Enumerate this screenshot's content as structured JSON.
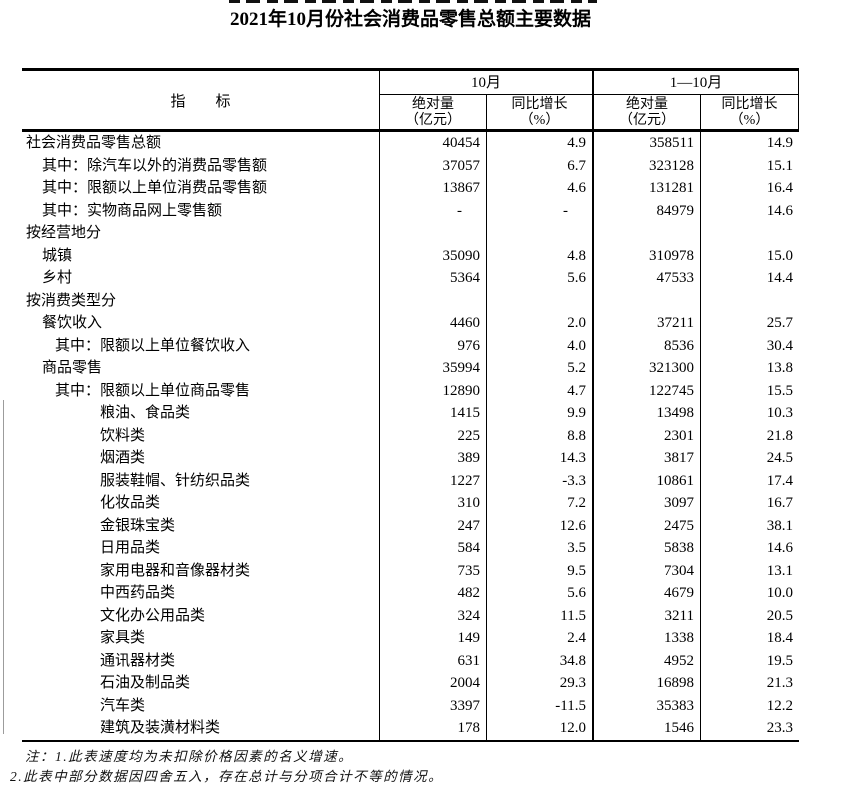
{
  "title": "2021年10月份社会消费品零售总额主要数据",
  "table": {
    "stub_header": "指　　标",
    "col_groups": [
      {
        "label": "10月"
      },
      {
        "label": "1—10月"
      }
    ],
    "sub_headers": [
      {
        "l1": "绝对量",
        "l2": "（亿元）"
      },
      {
        "l1": "同比增长",
        "l2": "（%）"
      },
      {
        "l1": "绝对量",
        "l2": "（亿元）"
      },
      {
        "l1": "同比增长",
        "l2": "（%）"
      }
    ],
    "rows": [
      {
        "label": "社会消费品零售总额",
        "indent": 0,
        "values": [
          "40454",
          "4.9",
          "358511",
          "14.9"
        ]
      },
      {
        "label": "其中：除汽车以外的消费品零售额",
        "indent": 1,
        "values": [
          "37057",
          "6.7",
          "323128",
          "15.1"
        ]
      },
      {
        "label": "其中：限额以上单位消费品零售额",
        "indent": 1,
        "values": [
          "13867",
          "4.6",
          "131281",
          "16.4"
        ]
      },
      {
        "label": "其中：实物商品网上零售额",
        "indent": 1,
        "values": [
          "-",
          "-",
          "84979",
          "14.6"
        ]
      },
      {
        "label": "按经营地分",
        "indent": 0,
        "values": [
          "",
          "",
          "",
          ""
        ]
      },
      {
        "label": "城镇",
        "indent": 1,
        "values": [
          "35090",
          "4.8",
          "310978",
          "15.0"
        ]
      },
      {
        "label": "乡村",
        "indent": 1,
        "values": [
          "5364",
          "5.6",
          "47533",
          "14.4"
        ]
      },
      {
        "label": "按消费类型分",
        "indent": 0,
        "values": [
          "",
          "",
          "",
          ""
        ]
      },
      {
        "label": "餐饮收入",
        "indent": 1,
        "values": [
          "4460",
          "2.0",
          "37211",
          "25.7"
        ]
      },
      {
        "label": "其中：限额以上单位餐饮收入",
        "indent": 2,
        "values": [
          "976",
          "4.0",
          "8536",
          "30.4"
        ]
      },
      {
        "label": "商品零售",
        "indent": 1,
        "values": [
          "35994",
          "5.2",
          "321300",
          "13.8"
        ]
      },
      {
        "label": "其中：限额以上单位商品零售",
        "indent": 2,
        "values": [
          "12890",
          "4.7",
          "122745",
          "15.5"
        ]
      },
      {
        "label": "粮油、食品类",
        "indent": 3,
        "values": [
          "1415",
          "9.9",
          "13498",
          "10.3"
        ]
      },
      {
        "label": "饮料类",
        "indent": 3,
        "values": [
          "225",
          "8.8",
          "2301",
          "21.8"
        ]
      },
      {
        "label": "烟酒类",
        "indent": 3,
        "values": [
          "389",
          "14.3",
          "3817",
          "24.5"
        ]
      },
      {
        "label": "服装鞋帽、针纺织品类",
        "indent": 3,
        "values": [
          "1227",
          "-3.3",
          "10861",
          "17.4"
        ]
      },
      {
        "label": "化妆品类",
        "indent": 3,
        "values": [
          "310",
          "7.2",
          "3097",
          "16.7"
        ]
      },
      {
        "label": "金银珠宝类",
        "indent": 3,
        "values": [
          "247",
          "12.6",
          "2475",
          "38.1"
        ]
      },
      {
        "label": "日用品类",
        "indent": 3,
        "values": [
          "584",
          "3.5",
          "5838",
          "14.6"
        ]
      },
      {
        "label": "家用电器和音像器材类",
        "indent": 3,
        "values": [
          "735",
          "9.5",
          "7304",
          "13.1"
        ]
      },
      {
        "label": "中西药品类",
        "indent": 3,
        "values": [
          "482",
          "5.6",
          "4679",
          "10.0"
        ]
      },
      {
        "label": "文化办公用品类",
        "indent": 3,
        "values": [
          "324",
          "11.5",
          "3211",
          "20.5"
        ]
      },
      {
        "label": "家具类",
        "indent": 3,
        "values": [
          "149",
          "2.4",
          "1338",
          "18.4"
        ]
      },
      {
        "label": "通讯器材类",
        "indent": 3,
        "values": [
          "631",
          "34.8",
          "4952",
          "19.5"
        ]
      },
      {
        "label": "石油及制品类",
        "indent": 3,
        "values": [
          "2004",
          "29.3",
          "16898",
          "21.3"
        ]
      },
      {
        "label": "汽车类",
        "indent": 3,
        "values": [
          "3397",
          "-11.5",
          "35383",
          "12.2"
        ]
      },
      {
        "label": "建筑及装潢材料类",
        "indent": 3,
        "values": [
          "178",
          "12.0",
          "1546",
          "23.3"
        ]
      }
    ]
  },
  "notes": [
    "注：1.此表速度均为未扣除价格因素的名义增速。",
    "2.此表中部分数据因四舍五入，存在总计与分项合计不等的情况。"
  ]
}
